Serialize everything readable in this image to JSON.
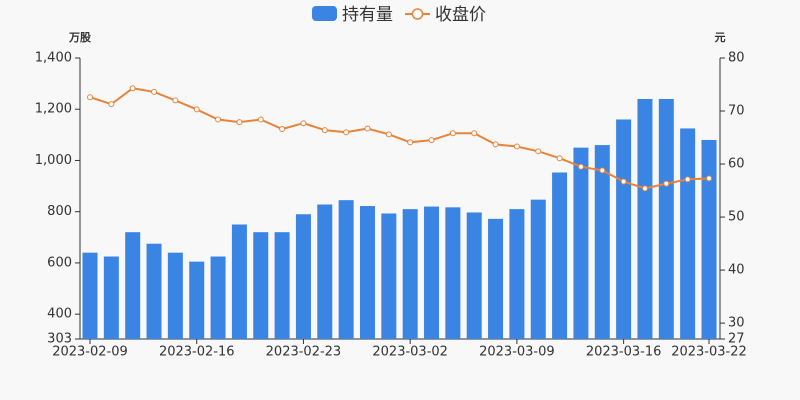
{
  "chart_data": {
    "type": "bar-line",
    "y_label": "万股",
    "y2_label": "元",
    "categories": [
      "2023-02-09",
      null,
      null,
      null,
      null,
      "2023-02-16",
      null,
      null,
      null,
      null,
      "2023-02-23",
      null,
      null,
      null,
      null,
      "2023-03-02",
      null,
      null,
      null,
      null,
      "2023-03-09",
      null,
      null,
      null,
      null,
      "2023-03-16",
      null,
      null,
      null,
      "2023-03-22"
    ],
    "series": [
      {
        "name": "持有量",
        "type": "bar",
        "color": "#3a84e3",
        "values": [
          640,
          625,
          720,
          675,
          640,
          605,
          625,
          750,
          720,
          720,
          790,
          828,
          845,
          822,
          793,
          810,
          820,
          817,
          797,
          772,
          810,
          847,
          953,
          1050,
          1060,
          1160,
          1240,
          1240,
          1125,
          1080
        ]
      },
      {
        "name": "收盘价",
        "type": "line",
        "axis": "y2",
        "color": "#e8833a",
        "values": [
          72.6,
          71.3,
          74.3,
          73.6,
          72.0,
          70.3,
          68.4,
          67.9,
          68.4,
          66.6,
          67.7,
          66.4,
          66.0,
          66.7,
          65.6,
          64.1,
          64.5,
          65.8,
          65.8,
          63.7,
          63.3,
          62.4,
          61.1,
          59.5,
          58.8,
          56.7,
          55.4,
          56.3,
          57.1,
          57.3
        ]
      }
    ],
    "ylim": [
      303,
      1400
    ],
    "yticks": [
      303,
      400,
      600,
      800,
      {
        "value": 1000,
        "label": "1,000"
      },
      {
        "value": 1200,
        "label": "1,200"
      },
      {
        "value": 1400,
        "label": "1,400"
      }
    ],
    "y2lim": [
      27,
      80
    ],
    "y2ticks": [
      27,
      30,
      40,
      50,
      60,
      70,
      80
    ]
  }
}
